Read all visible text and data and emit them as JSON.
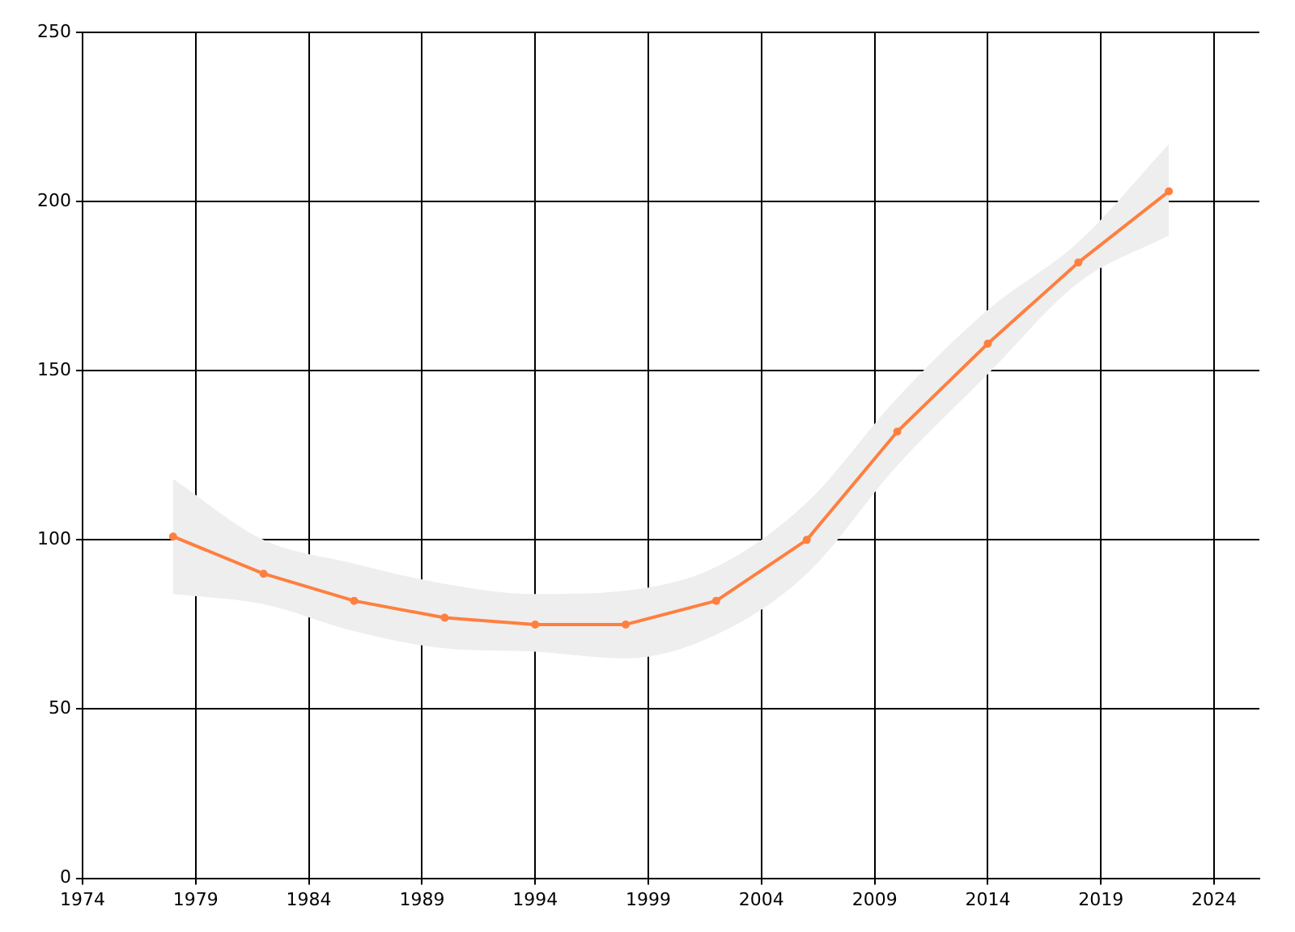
{
  "chart_data": {
    "type": "line",
    "x": [
      1978,
      1982,
      1986,
      1990,
      1994,
      1998,
      2002,
      2006,
      2010,
      2014,
      2018,
      2022
    ],
    "series": [
      {
        "color": "#ff7f3f",
        "values": [
          101,
          90,
          82,
          77,
          75,
          75,
          82,
          100,
          132,
          158,
          182,
          203
        ],
        "lower": [
          84,
          81,
          73,
          68,
          67,
          65,
          72,
          90,
          122,
          149,
          176,
          190
        ],
        "upper": [
          118,
          100,
          93,
          87,
          84,
          85,
          92,
          111,
          142,
          168,
          188,
          217
        ]
      }
    ],
    "xlim": [
      1974,
      2026
    ],
    "xticks": [
      1974,
      1979,
      1984,
      1989,
      1994,
      1999,
      2004,
      2009,
      2014,
      2019,
      2024
    ],
    "ylim": [
      0,
      250
    ],
    "yticks": [
      0,
      50,
      100,
      150,
      200,
      250
    ],
    "grid": true,
    "legend": false,
    "marker": "circle",
    "line_style": "solid"
  }
}
